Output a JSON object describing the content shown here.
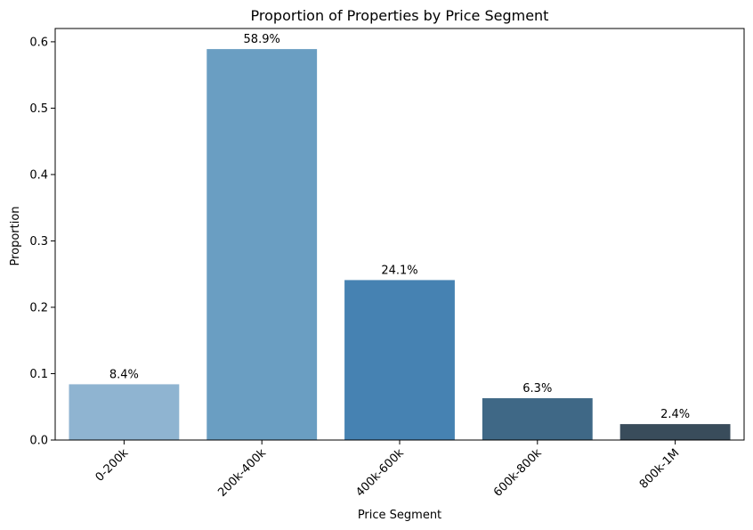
{
  "chart_data": {
    "type": "bar",
    "title": "Proportion of Properties by Price Segment",
    "xlabel": "Price Segment",
    "ylabel": "Proportion",
    "categories": [
      "0-200k",
      "200k-400k",
      "400k-600k",
      "600k-800k",
      "800k-1M"
    ],
    "values": [
      0.084,
      0.589,
      0.241,
      0.063,
      0.024
    ],
    "data_labels": [
      "8.4%",
      "58.9%",
      "24.1%",
      "6.3%",
      "2.4%"
    ],
    "colors": [
      "#8fb4d1",
      "#6a9ec2",
      "#4682b2",
      "#3f6886",
      "#394c5b"
    ],
    "ylim": [
      0,
      0.62
    ],
    "yticks": [
      0.0,
      0.1,
      0.2,
      0.3,
      0.4,
      0.5,
      0.6
    ],
    "ytick_labels": [
      "0.0",
      "0.1",
      "0.2",
      "0.3",
      "0.4",
      "0.5",
      "0.6"
    ],
    "xtick_rotation_deg": -45,
    "grid": false,
    "legend": "none"
  }
}
